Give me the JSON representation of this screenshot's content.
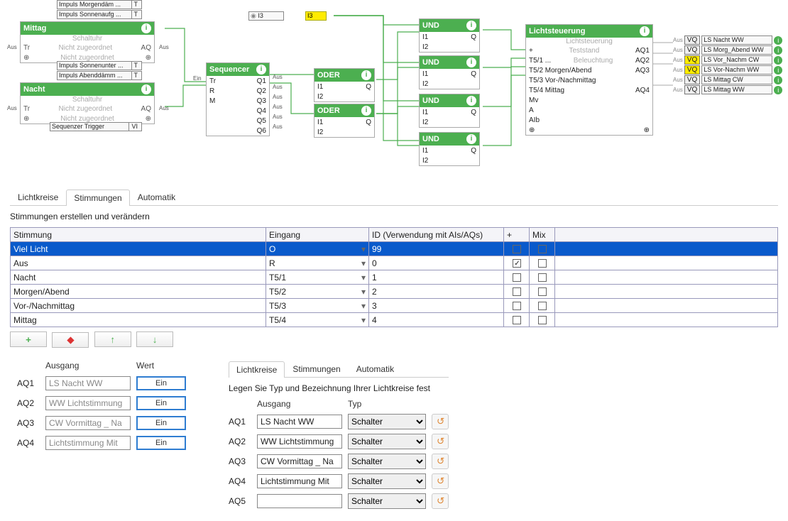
{
  "diagram": {
    "mittag_block": {
      "title": "Mittag",
      "sub": "Schaltuhr",
      "row1_l": "Tr",
      "row1_c": "Nicht zugeordnet",
      "row1_r": "AQ",
      "row2_c": "Nicht zugeordnet"
    },
    "nacht_block": {
      "title": "Nacht",
      "sub": "Schaltuhr",
      "row1_l": "Tr",
      "row1_c": "Nicht zugeordnet",
      "row1_r": "AQ",
      "row2_c": "Nicht zugeordnet"
    },
    "impuls_tags": [
      "Impuls Morgendäm ...",
      "Impuls Sonnenaufg ...",
      "Impuls Sonnenunter ...",
      "Impuls Abenddämm ..."
    ],
    "seq_trigger_tag": "Sequenzer Trigger",
    "i3_tag": "I3",
    "sequencer": {
      "title": "Sequencer",
      "in": [
        "Tr",
        "R",
        "M"
      ],
      "out": [
        "Q1",
        "Q2",
        "Q3",
        "Q4",
        "Q5",
        "Q6"
      ]
    },
    "oder": {
      "title": "ODER",
      "i1": "I1",
      "i2": "I2",
      "q": "Q"
    },
    "und": {
      "title": "UND",
      "i1": "I1",
      "i2": "I2",
      "q": "Q"
    },
    "licht": {
      "title": "Lichtsteuerung",
      "sub1": "Lichtsteuerung",
      "sub2": "Teststand",
      "sub3": "Beleuchtung",
      "left": [
        "+",
        "T5/1 ...",
        "T5/2 Morgen/Abend",
        "T5/3 Vor-/Nachmittag",
        "T5/4 Mittag",
        "Mv",
        "A",
        "AIb",
        "⊕"
      ],
      "right": [
        "AQ1",
        "AQ2",
        "AQ3",
        "",
        "AQ4"
      ]
    },
    "outputs": [
      {
        "vq": "VQ",
        "y": false,
        "label": "LS Nacht WW"
      },
      {
        "vq": "VQ",
        "y": false,
        "label": "LS Morg_Abend WW"
      },
      {
        "vq": "VQ",
        "y": true,
        "label": "LS Vor_Nachm CW"
      },
      {
        "vq": "VQ",
        "y": true,
        "label": "LS Vor-Nachm WW"
      },
      {
        "vq": "VQ",
        "y": false,
        "label": "LS Mittag CW"
      },
      {
        "vq": "VQ",
        "y": false,
        "label": "LS Mittag WW"
      }
    ],
    "pin_ein": "Ein",
    "pin_aus": "Aus"
  },
  "tabs": {
    "t1": "Lichtkreise",
    "t2": "Stimmungen",
    "t3": "Automatik"
  },
  "stimmungen": {
    "instr": "Stimmungen erstellen und verändern",
    "headers": {
      "c1": "Stimmung",
      "c2": "Eingang",
      "c3": "ID (Verwendung mit AIs/AQs)",
      "c4": "+",
      "c5": "Mix"
    },
    "rows": [
      {
        "name": "Viel Licht",
        "eingang": "O",
        "id": "99",
        "plus": false,
        "mix": false,
        "selected": true
      },
      {
        "name": "Aus",
        "eingang": "R",
        "id": "0",
        "plus": true,
        "mix": false
      },
      {
        "name": "Nacht",
        "eingang": "T5/1",
        "id": "1",
        "plus": false,
        "mix": false
      },
      {
        "name": "Morgen/Abend",
        "eingang": "T5/2",
        "id": "2",
        "plus": false,
        "mix": false
      },
      {
        "name": "Vor-/Nachmittag",
        "eingang": "T5/3",
        "id": "3",
        "plus": false,
        "mix": false
      },
      {
        "name": "Mittag",
        "eingang": "T5/4",
        "id": "4",
        "plus": false,
        "mix": false
      }
    ],
    "toolbar": {
      "add": "+",
      "del": "◆",
      "up": "↑",
      "down": "↓"
    }
  },
  "ausgang_panel": {
    "h_ausgang": "Ausgang",
    "h_wert": "Wert",
    "btn": "Ein",
    "rows": [
      {
        "aq": "AQ1",
        "name": "LS Nacht WW"
      },
      {
        "aq": "AQ2",
        "name": "WW Lichtstimmung"
      },
      {
        "aq": "AQ3",
        "name": "CW Vormittag _ Na"
      },
      {
        "aq": "AQ4",
        "name": "Lichtstimmung Mit"
      }
    ]
  },
  "lichtkreise_panel": {
    "instr": "Legen Sie Typ und Bezeichnung Ihrer Lichtkreise fest",
    "h_ausgang": "Ausgang",
    "h_typ": "Typ",
    "opt": "Schalter",
    "rows": [
      {
        "aq": "AQ1",
        "name": "LS Nacht WW"
      },
      {
        "aq": "AQ2",
        "name": "WW Lichtstimmung"
      },
      {
        "aq": "AQ3",
        "name": "CW Vormittag _ Na"
      },
      {
        "aq": "AQ4",
        "name": "Lichtstimmung Mit"
      },
      {
        "aq": "AQ5",
        "name": ""
      }
    ]
  }
}
